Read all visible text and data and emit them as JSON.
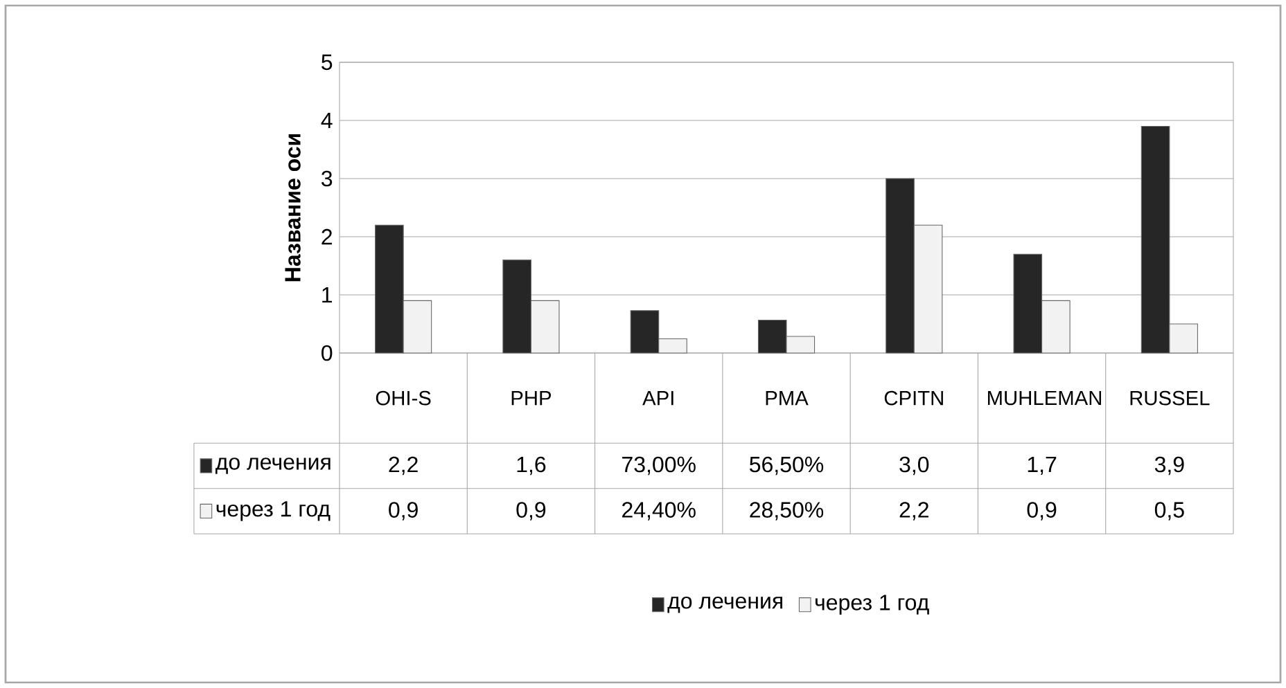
{
  "chart_data": {
    "type": "bar",
    "ylabel": "Название оси",
    "categories": [
      "OHI-S",
      "PHP",
      "API",
      "PMA",
      "CPITN",
      "MUHLEMAN",
      "RUSSEL"
    ],
    "series": [
      {
        "name": "до лечения",
        "color": "#262626",
        "values": [
          2.2,
          1.6,
          0.73,
          0.565,
          3.0,
          1.7,
          3.9
        ],
        "value_labels": [
          "2,2",
          "1,6",
          "73,00%",
          "56,50%",
          "3,0",
          "1,7",
          "3,9"
        ]
      },
      {
        "name": "через 1 год",
        "color": "#f2f2f2",
        "values": [
          0.9,
          0.9,
          0.244,
          0.285,
          2.2,
          0.9,
          0.5
        ],
        "value_labels": [
          "0,9",
          "0,9",
          "24,40%",
          "28,50%",
          "2,2",
          "0,9",
          "0,5"
        ]
      }
    ],
    "ylim": [
      0,
      5
    ],
    "yticks": [
      0,
      1,
      2,
      3,
      4,
      5
    ],
    "grid": "y",
    "legend": "bottom"
  }
}
